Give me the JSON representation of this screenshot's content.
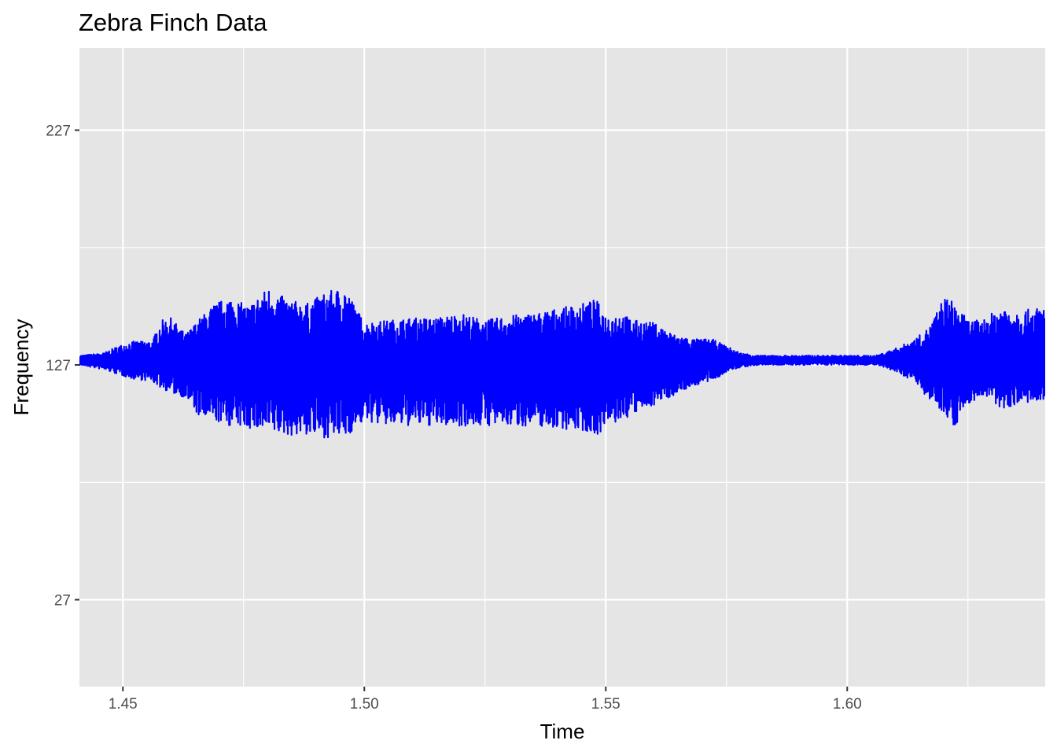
{
  "chart_data": {
    "type": "line",
    "title": "Zebra Finch Data",
    "xlabel": "Time",
    "ylabel": "Frequency",
    "xlim": [
      1.441,
      1.641
    ],
    "ylim": [
      -10,
      262
    ],
    "x_ticks": [
      {
        "value": 1.45,
        "label": "1.45"
      },
      {
        "value": 1.5,
        "label": "1.50"
      },
      {
        "value": 1.55,
        "label": "1.55"
      },
      {
        "value": 1.6,
        "label": "1.60"
      }
    ],
    "y_ticks": [
      {
        "value": 27,
        "label": "27"
      },
      {
        "value": 127,
        "label": "127"
      },
      {
        "value": 227,
        "label": "227"
      }
    ],
    "x_minor_gridlines": [
      1.475,
      1.525,
      1.575,
      1.625
    ],
    "y_minor_gridlines": [
      77,
      177
    ],
    "grid": true,
    "legend": "none",
    "background": "#e5e5e5",
    "gridline_color": "#ffffff",
    "series": [
      {
        "color": "#0000ff",
        "baseline": 129,
        "envelope": {
          "t": [
            1.441,
            1.446,
            1.449,
            1.452,
            1.456,
            1.458,
            1.46,
            1.463,
            1.466,
            1.469,
            1.472,
            1.476,
            1.48,
            1.484,
            1.488,
            1.492,
            1.496,
            1.5,
            1.505,
            1.51,
            1.515,
            1.52,
            1.525,
            1.53,
            1.535,
            1.54,
            1.545,
            1.548,
            1.55,
            1.553,
            1.556,
            1.56,
            1.564,
            1.568,
            1.572,
            1.575,
            1.578,
            1.582,
            1.59,
            1.6,
            1.606,
            1.61,
            1.614,
            1.617,
            1.62,
            1.622,
            1.625,
            1.628,
            1.632,
            1.636,
            1.641
          ],
          "upper": [
            131,
            132,
            135,
            137,
            137,
            146,
            147,
            140,
            147,
            153,
            156,
            152,
            160,
            155,
            153,
            158,
            160,
            145,
            146,
            147,
            147,
            149,
            146,
            148,
            149,
            151,
            153,
            155,
            148,
            149,
            146,
            145,
            140,
            138,
            138,
            135,
            132,
            131,
            131,
            131,
            131,
            134,
            138,
            143,
            156,
            154,
            146,
            146,
            152,
            150,
            152
          ],
          "lower": [
            127,
            125,
            123,
            121,
            120,
            117,
            115,
            113,
            104,
            103,
            101,
            100,
            98,
            97,
            97,
            96,
            96,
            103,
            101,
            101,
            101,
            101,
            101,
            101,
            101,
            100,
            99,
            97,
            100,
            103,
            106,
            110,
            114,
            118,
            120,
            124,
            126,
            127,
            127,
            127,
            127,
            124,
            120,
            112,
            107,
            100,
            110,
            114,
            108,
            111,
            110
          ]
        }
      }
    ]
  }
}
